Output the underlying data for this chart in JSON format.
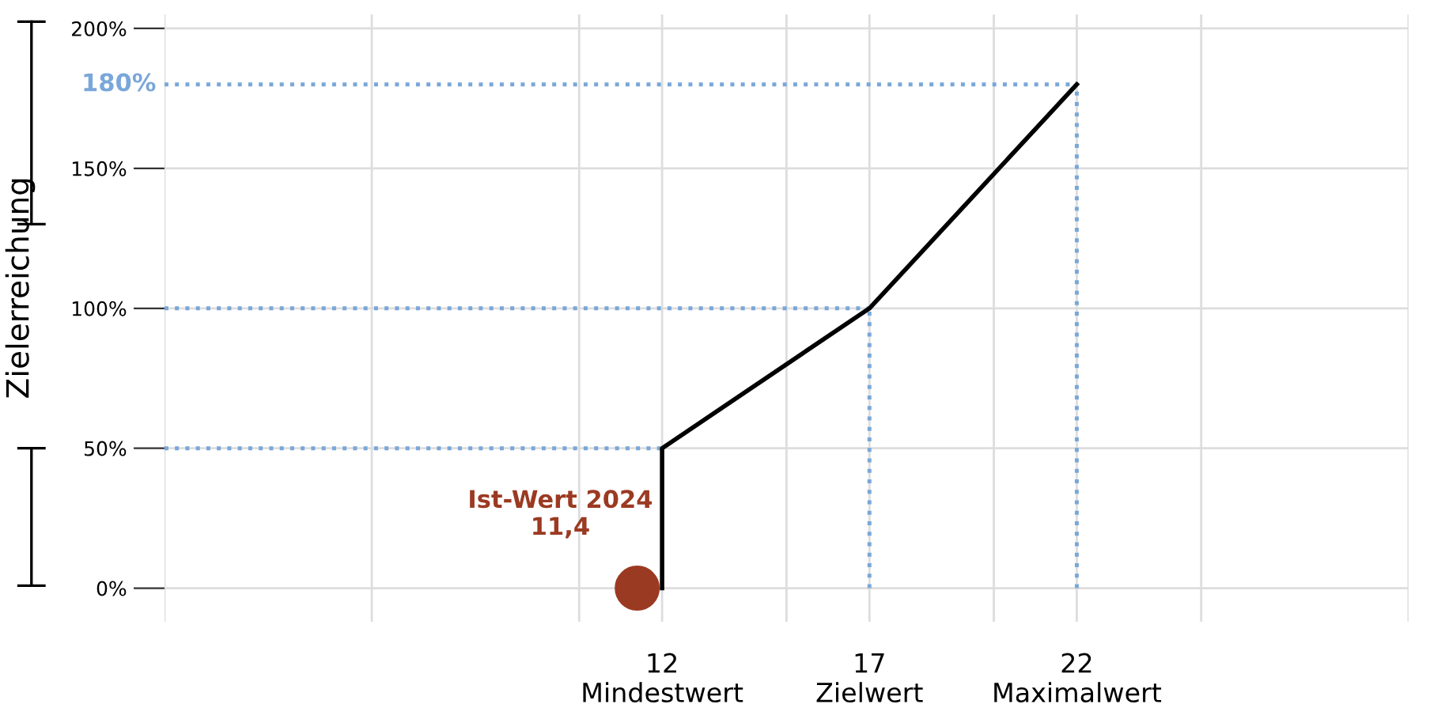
{
  "chart_data": {
    "type": "line",
    "ylabel": "Zielerreichung",
    "xlim": [
      0,
      30
    ],
    "ylim": [
      -12,
      205
    ],
    "xticks": [
      {
        "value": 0,
        "label": null
      },
      {
        "value": 5,
        "label": null
      },
      {
        "value": 10,
        "label": null
      },
      {
        "value": 12,
        "label": "12\nMindestwert"
      },
      {
        "value": 15,
        "label": null
      },
      {
        "value": 17,
        "label": "17\nZielwert"
      },
      {
        "value": 20,
        "label": null
      },
      {
        "value": 22,
        "label": "22\nMaximalwert"
      },
      {
        "value": 25,
        "label": null
      },
      {
        "value": 30,
        "label": null
      }
    ],
    "yticks": [
      {
        "value": 0,
        "label": "0%"
      },
      {
        "value": 50,
        "label": "50%"
      },
      {
        "value": 100,
        "label": "100%"
      },
      {
        "value": 150,
        "label": "150%"
      },
      {
        "value": 200,
        "label": "200%"
      }
    ],
    "grid": true,
    "series": [
      {
        "color": "#000000",
        "x": [
          12,
          12,
          17,
          22
        ],
        "values": [
          0,
          50,
          100,
          180
        ]
      },
      {
        "type": "scatter",
        "color": "#9b3a22",
        "x": [
          11.4
        ],
        "values": [
          0
        ]
      }
    ],
    "ref_lines": [
      {
        "axis": "y",
        "value": 50,
        "label": null,
        "color": "#7aa7d9",
        "line_style": "dotted"
      },
      {
        "axis": "y",
        "value": 100,
        "label": null,
        "color": "#7aa7d9",
        "line_style": "dotted"
      },
      {
        "axis": "y",
        "value": 180,
        "label": "180%",
        "color": "#7aa7d9",
        "line_style": "dotted"
      },
      {
        "axis": "x",
        "value": 17,
        "label": null,
        "color": "#7aa7d9",
        "line_style": "dotted"
      },
      {
        "axis": "x",
        "value": 22,
        "label": null,
        "color": "#7aa7d9",
        "line_style": "dotted"
      }
    ],
    "annotations": [
      {
        "text": "Ist-Wert 2024\n11,4",
        "x": 11.4,
        "y": 0
      }
    ]
  }
}
